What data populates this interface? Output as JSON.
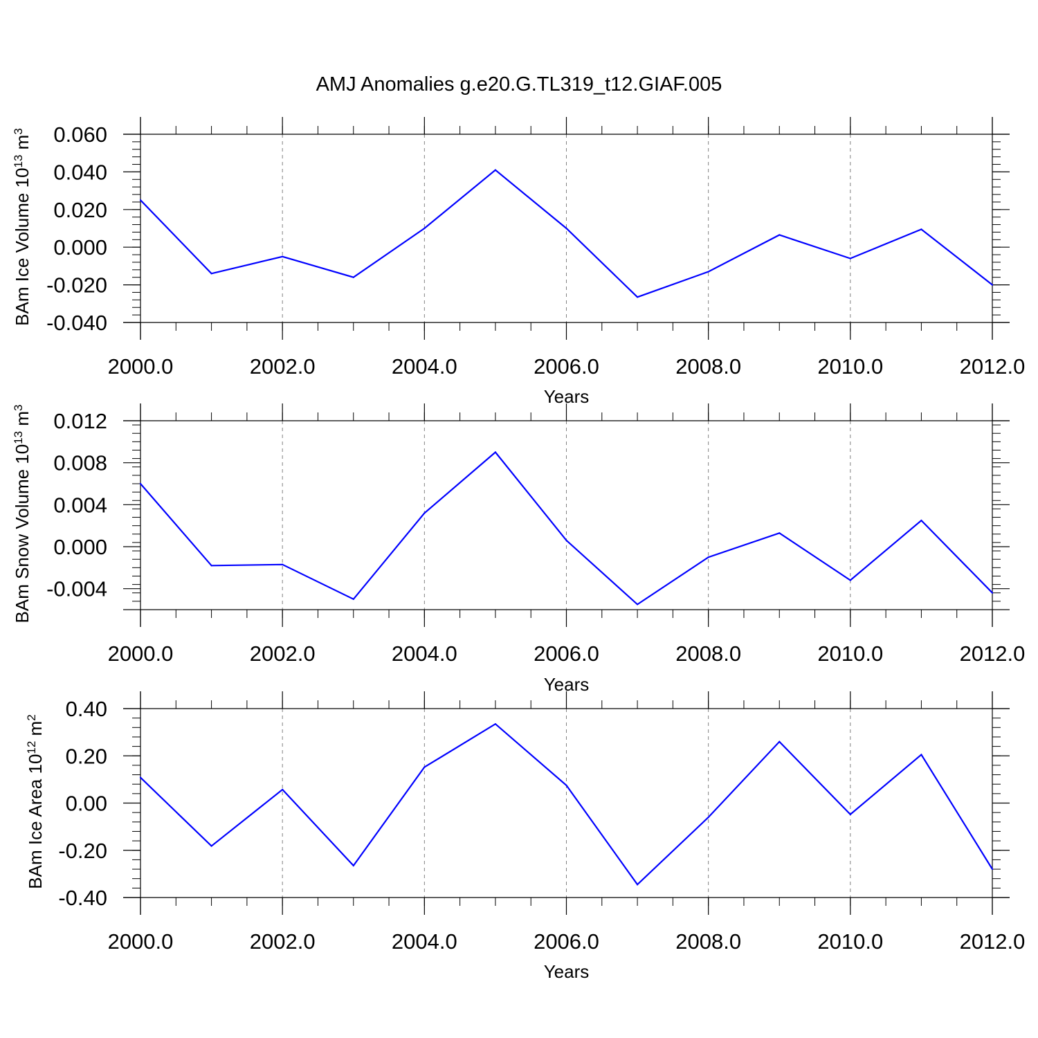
{
  "title": "AMJ Anomalies g.e20.G.TL319_t12.GIAF.005",
  "colors": {
    "line": "#0000ff",
    "axis": "#000000",
    "grid": "#808080"
  },
  "chart_data": [
    {
      "type": "line",
      "title": "",
      "xlabel": "Years",
      "ylabel": {
        "text": "BAm Ice Volume 10",
        "exp": "13",
        "unit": " m",
        "unit_exp": "3"
      },
      "x": [
        2000,
        2001,
        2002,
        2003,
        2004,
        2005,
        2006,
        2007,
        2008,
        2009,
        2010,
        2011,
        2012
      ],
      "xlim": [
        2000,
        2012
      ],
      "xticks": [
        2000,
        2002,
        2004,
        2006,
        2008,
        2010,
        2012
      ],
      "xtick_labels": [
        "2000.0",
        "2002.0",
        "2004.0",
        "2006.0",
        "2008.0",
        "2010.0",
        "2012.0"
      ],
      "ylim": [
        -0.04,
        0.06
      ],
      "yticks": [
        -0.04,
        -0.02,
        0.0,
        0.02,
        0.04,
        0.06
      ],
      "ytick_labels": [
        "-0.040",
        "-0.020",
        "0.000",
        "0.020",
        "0.040",
        "0.060"
      ],
      "grid": "vertical dashed at major x ticks",
      "series": [
        {
          "values": [
            0.025,
            -0.014,
            -0.005,
            -0.016,
            0.01,
            0.041,
            0.01,
            -0.0265,
            -0.013,
            0.0065,
            -0.006,
            0.0095,
            -0.02
          ]
        }
      ]
    },
    {
      "type": "line",
      "title": "",
      "xlabel": "Years",
      "ylabel": {
        "text": "BAm Snow Volume 10",
        "exp": "13",
        "unit": " m",
        "unit_exp": "3"
      },
      "x": [
        2000,
        2001,
        2002,
        2003,
        2004,
        2005,
        2006,
        2007,
        2008,
        2009,
        2010,
        2011,
        2012
      ],
      "xlim": [
        2000,
        2012
      ],
      "xticks": [
        2000,
        2002,
        2004,
        2006,
        2008,
        2010,
        2012
      ],
      "xtick_labels": [
        "2000.0",
        "2002.0",
        "2004.0",
        "2006.0",
        "2008.0",
        "2010.0",
        "2012.0"
      ],
      "ylim": [
        -0.006,
        0.012
      ],
      "yticks": [
        -0.004,
        0.0,
        0.004,
        0.008,
        0.012
      ],
      "ytick_labels": [
        "-0.004",
        "0.000",
        "0.004",
        "0.008",
        "0.012"
      ],
      "grid": "vertical dashed at major x ticks",
      "series": [
        {
          "values": [
            0.006,
            -0.0018,
            -0.0017,
            -0.005,
            0.0032,
            0.009,
            0.0006,
            -0.0055,
            -0.001,
            0.0013,
            -0.0032,
            0.0025,
            -0.0044
          ]
        }
      ]
    },
    {
      "type": "line",
      "title": "",
      "xlabel": "Years",
      "ylabel": {
        "text": "BAm Ice Area 10",
        "exp": "12",
        "unit": " m",
        "unit_exp": "2"
      },
      "x": [
        2000,
        2001,
        2002,
        2003,
        2004,
        2005,
        2006,
        2007,
        2008,
        2009,
        2010,
        2011,
        2012
      ],
      "xlim": [
        2000,
        2012
      ],
      "xticks": [
        2000,
        2002,
        2004,
        2006,
        2008,
        2010,
        2012
      ],
      "xtick_labels": [
        "2000.0",
        "2002.0",
        "2004.0",
        "2006.0",
        "2008.0",
        "2010.0",
        "2012.0"
      ],
      "ylim": [
        -0.4,
        0.4
      ],
      "yticks": [
        -0.4,
        -0.2,
        0.0,
        0.2,
        0.4
      ],
      "ytick_labels": [
        "-0.40",
        "-0.20",
        "0.00",
        "0.20",
        "0.40"
      ],
      "grid": "vertical dashed at major x ticks",
      "series": [
        {
          "values": [
            0.108,
            -0.182,
            0.057,
            -0.265,
            0.152,
            0.335,
            0.075,
            -0.345,
            -0.06,
            0.26,
            -0.048,
            0.205,
            -0.28
          ]
        }
      ]
    }
  ]
}
